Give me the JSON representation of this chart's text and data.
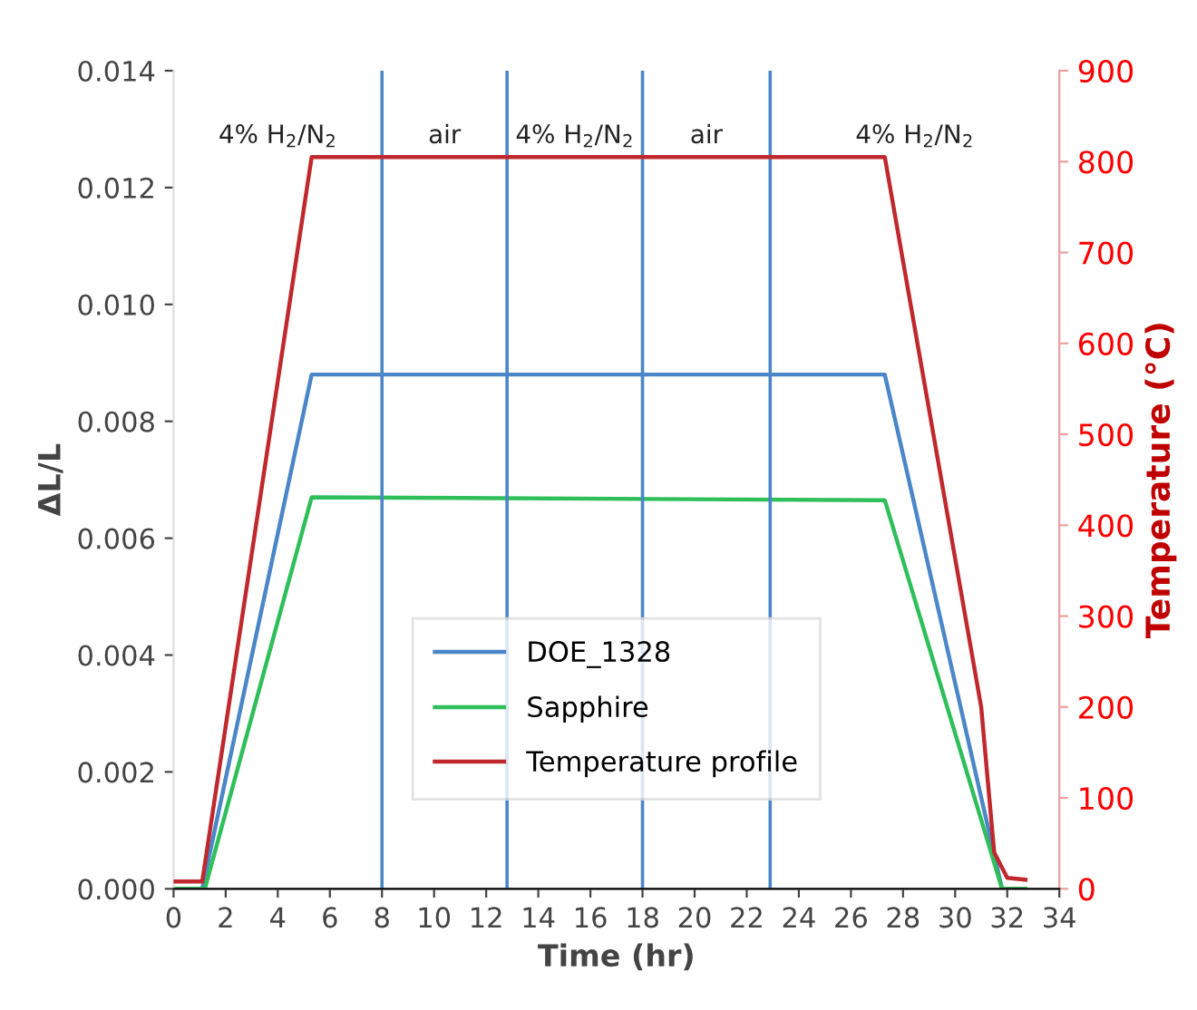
{
  "chart_data": {
    "type": "line",
    "xlabel": "Time (hr)",
    "ylabel": "ΔL/L",
    "y2label": "Temperature (°C)",
    "xlim": [
      0,
      34
    ],
    "xticks": [
      0,
      2,
      4,
      6,
      8,
      10,
      12,
      14,
      16,
      18,
      20,
      22,
      24,
      26,
      28,
      30,
      32,
      34
    ],
    "ylim": [
      0,
      0.014
    ],
    "yticks": [
      {
        "value": 0,
        "label": "0.000"
      },
      {
        "value": 0.002,
        "label": "0.002"
      },
      {
        "value": 0.004,
        "label": "0.004"
      },
      {
        "value": 0.006,
        "label": "0.006"
      },
      {
        "value": 0.008,
        "label": "0.008"
      },
      {
        "value": 0.01,
        "label": "0.010"
      },
      {
        "value": 0.012,
        "label": "0.012"
      },
      {
        "value": 0.014,
        "label": "0.014"
      }
    ],
    "y2lim": [
      0,
      900
    ],
    "y2ticks": [
      0,
      100,
      200,
      300,
      400,
      500,
      600,
      700,
      800,
      900
    ],
    "series": [
      {
        "name": "DOE_1328",
        "color": "#4a86c8",
        "x": [
          0,
          1.1,
          5.3,
          27.3,
          31.8,
          32.7
        ],
        "values": [
          0,
          0,
          0.0088,
          0.0088,
          0,
          0
        ]
      },
      {
        "name": "Sapphire",
        "color": "#2fbf5a",
        "x": [
          0,
          1.2,
          5.3,
          27.3,
          31.8,
          32.7
        ],
        "values": [
          0,
          0,
          0.0067,
          0.00665,
          0,
          0
        ]
      },
      {
        "name": "Temperature profile",
        "color": "#c0282d",
        "axis": "y2",
        "x": [
          0,
          1.1,
          5.3,
          27.3,
          31.0,
          31.5,
          32.0,
          32.7
        ],
        "values": [
          8,
          8,
          805,
          805,
          200,
          40,
          12,
          10
        ]
      }
    ],
    "ref_lines": [
      {
        "axis": "x",
        "value": 8,
        "color": "#4a86c8"
      },
      {
        "axis": "x",
        "value": 12.8,
        "color": "#4a86c8"
      },
      {
        "axis": "x",
        "value": 18,
        "color": "#4a86c8"
      },
      {
        "axis": "x",
        "value": 22.9,
        "color": "#4a86c8"
      }
    ],
    "annotations": [
      "4% H$_{2}$/N$_{2}$",
      "air",
      "4% H$_{2}$/N$_{2}$",
      "air",
      "4% H$_{2}$/N$_{2}$"
    ],
    "legend": "center",
    "grid": false,
    "marker": "none",
    "line_style": "solid"
  }
}
